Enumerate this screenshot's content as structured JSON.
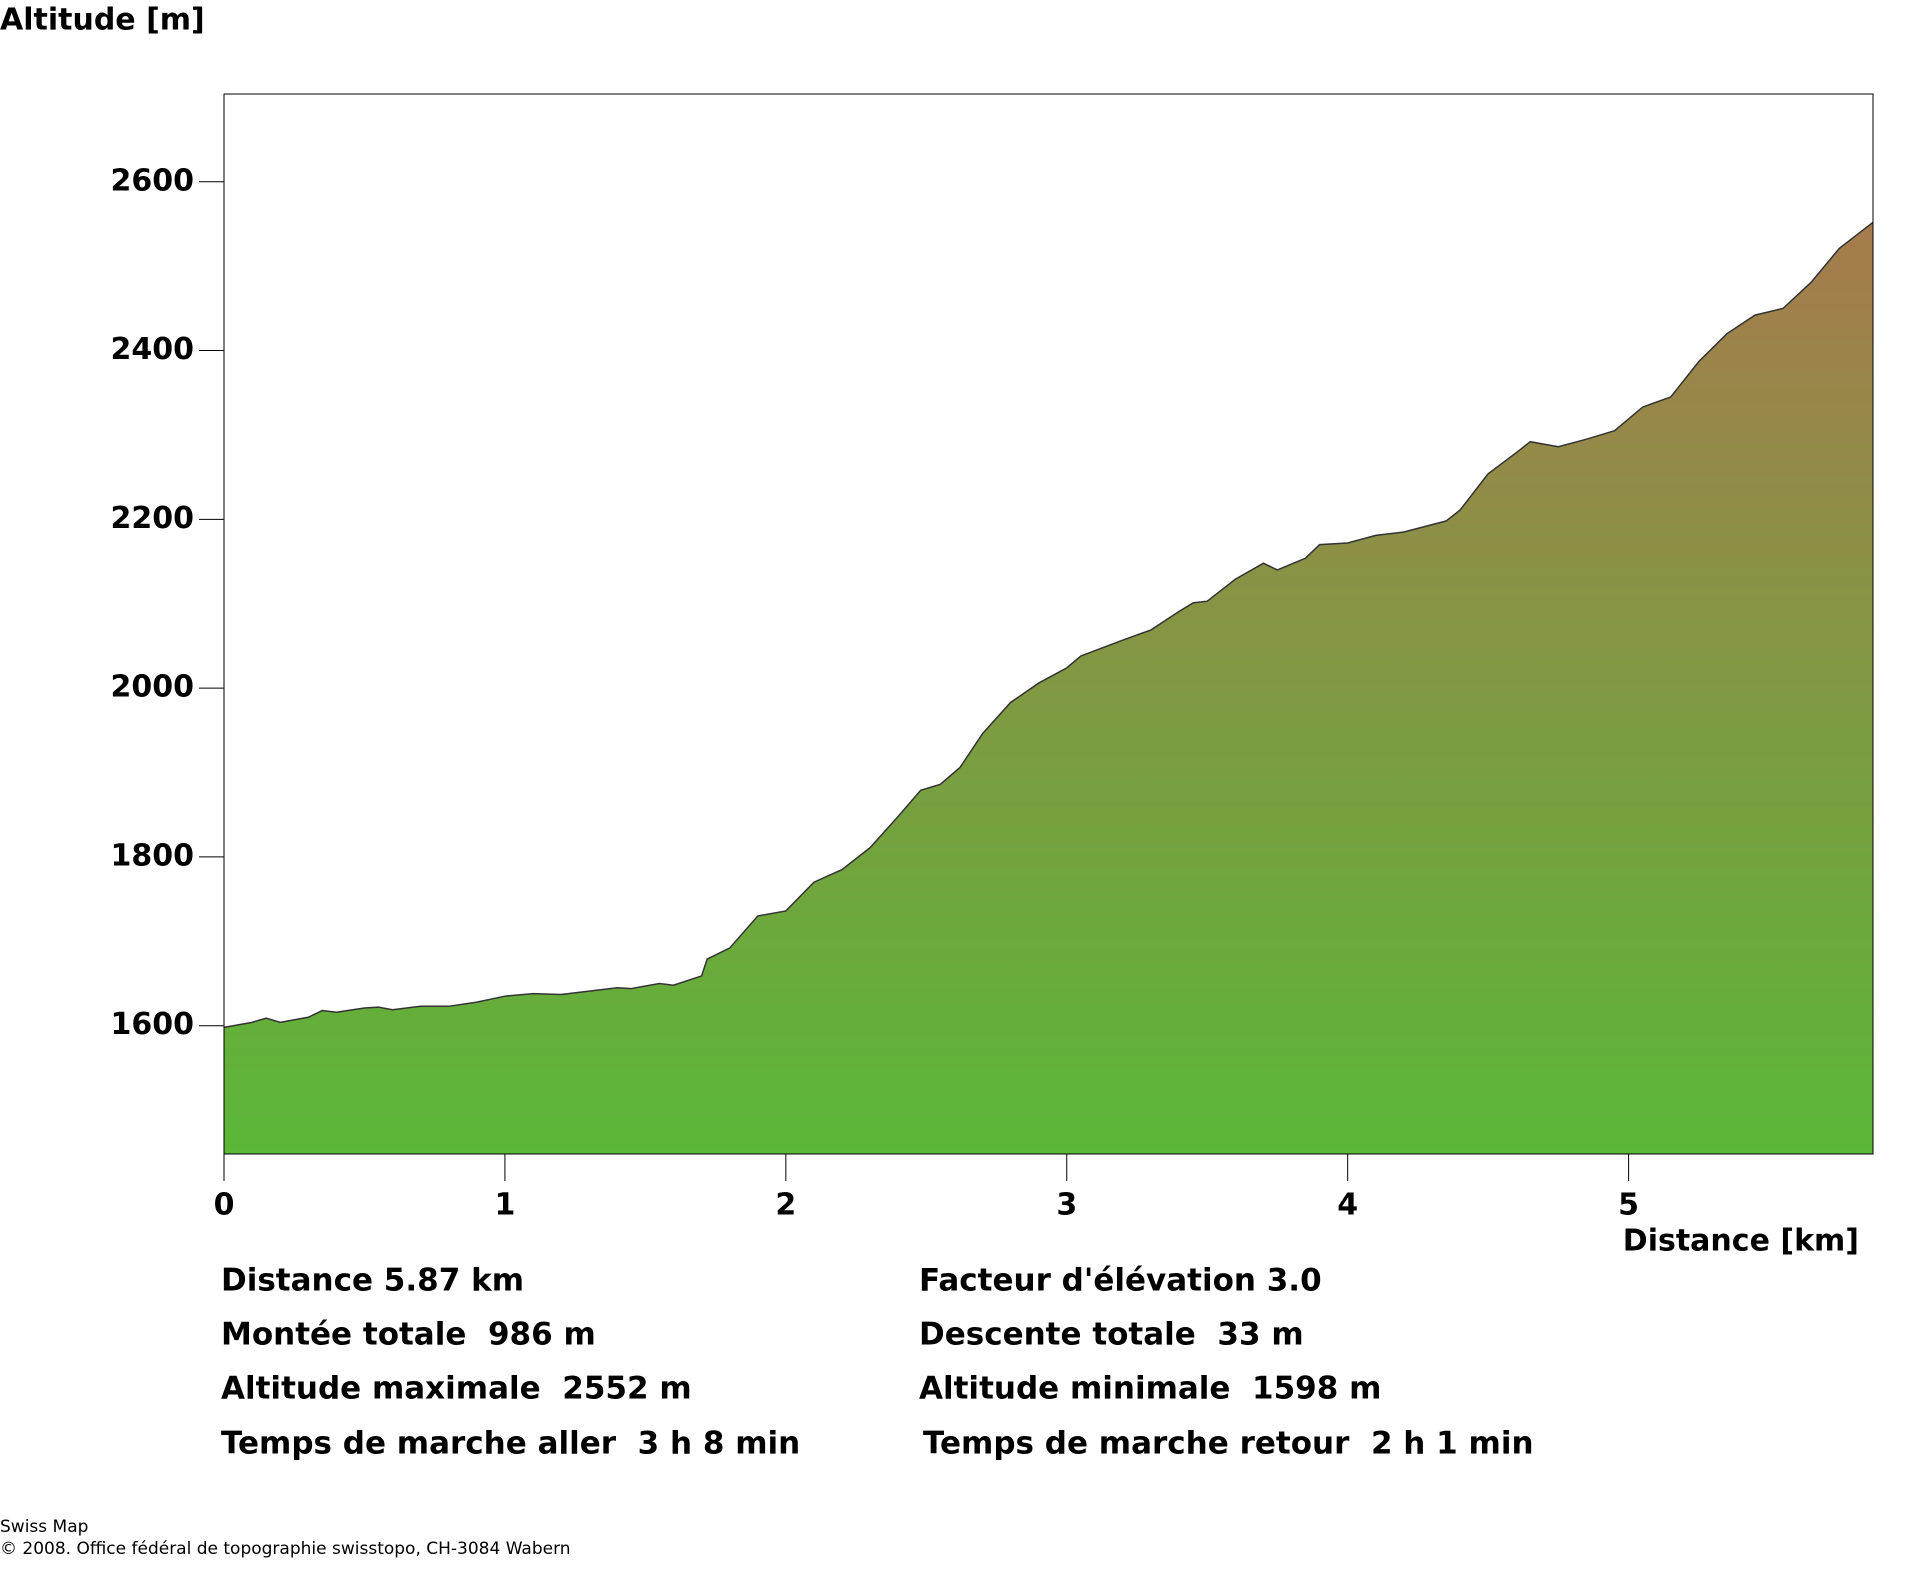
{
  "chart_data": {
    "type": "area",
    "y_label": "Altitude [m]",
    "x_label": "Distance [km]",
    "x": [
      0,
      0.1,
      0.15,
      0.2,
      0.3,
      0.35,
      0.4,
      0.5,
      0.55,
      0.6,
      0.7,
      0.8,
      0.9,
      1.0,
      1.1,
      1.2,
      1.3,
      1.4,
      1.45,
      1.55,
      1.6,
      1.7,
      1.72,
      1.8,
      1.9,
      2.0,
      2.1,
      2.2,
      2.3,
      2.4,
      2.48,
      2.55,
      2.62,
      2.7,
      2.8,
      2.9,
      3.0,
      3.05,
      3.2,
      3.3,
      3.4,
      3.45,
      3.5,
      3.6,
      3.7,
      3.75,
      3.85,
      3.9,
      4.0,
      4.1,
      4.2,
      4.35,
      4.4,
      4.5,
      4.6,
      4.65,
      4.75,
      4.85,
      4.95,
      5.05,
      5.15,
      5.25,
      5.35,
      5.45,
      5.55,
      5.65,
      5.75,
      5.87
    ],
    "values": [
      1598,
      1604,
      1609,
      1604,
      1610,
      1618,
      1616,
      1621,
      1622,
      1619,
      1623,
      1623,
      1628,
      1635,
      1638,
      1637,
      1641,
      1645,
      1644,
      1650,
      1648,
      1659,
      1679,
      1692,
      1730,
      1736,
      1770,
      1785,
      1811,
      1848,
      1879,
      1886,
      1906,
      1946,
      1983,
      2006,
      2024,
      2038,
      2057,
      2069,
      2091,
      2101,
      2103,
      2129,
      2148,
      2140,
      2154,
      2170,
      2172,
      2181,
      2185,
      2198,
      2211,
      2254,
      2279,
      2292,
      2286,
      2295,
      2305,
      2333,
      2345,
      2387,
      2420,
      2442,
      2450,
      2481,
      2521,
      2552
    ],
    "xlim": [
      0,
      5.87
    ],
    "ylim": [
      1448,
      2704
    ],
    "xticks": [
      0,
      1,
      2,
      3,
      4,
      5
    ],
    "yticks": [
      1600,
      1800,
      2000,
      2200,
      2400,
      2600
    ],
    "color_bottom": "#5ab737",
    "color_top": "#a67b4d",
    "line_color": "#333333"
  },
  "stats": [
    [
      "Distance 5.87 km",
      "Facteur d'élévation 3.0"
    ],
    [
      "Montée totale  986 m",
      "Descente totale  33 m"
    ],
    [
      "Altitude maximale  2552 m",
      "Altitude minimale  1598 m"
    ],
    [
      "Temps de marche aller  3 h 8 min",
      "Temps de marche retour  2 h 1 min"
    ]
  ],
  "footer": [
    "Swiss Map",
    "© 2008. Office fédéral de topographie swisstopo, CH-3084 Wabern"
  ]
}
